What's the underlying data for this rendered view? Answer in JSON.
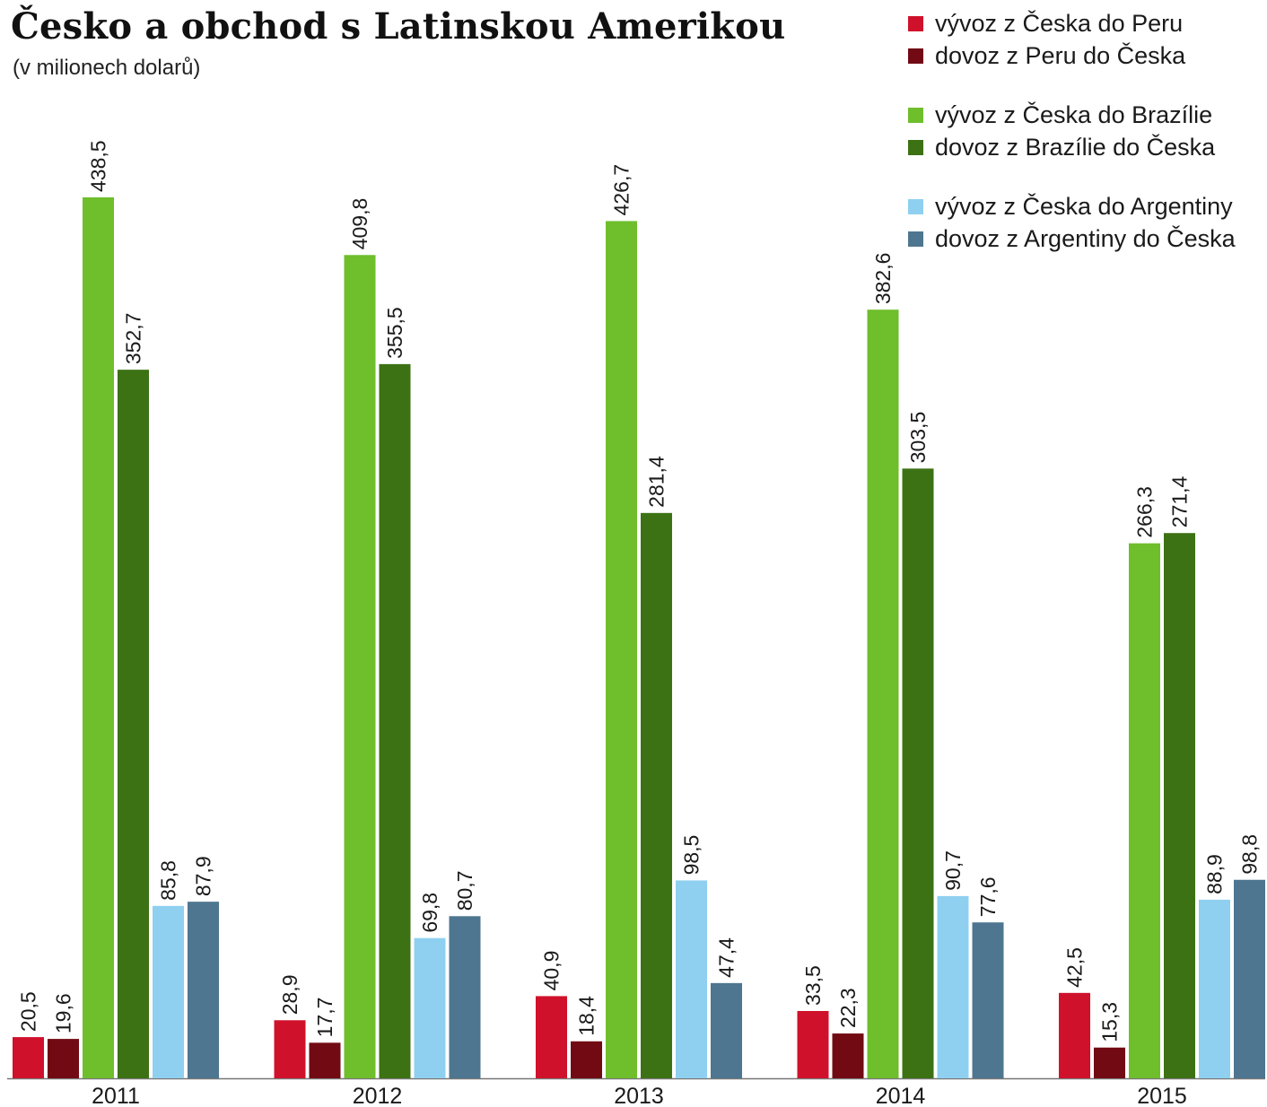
{
  "title": "Česko a obchod s Latinskou Amerikou",
  "subtitle": "(v milionech dolarů)",
  "chart_data": {
    "type": "bar",
    "title": "Česko a obchod s Latinskou Amerikou",
    "subtitle": "(v milionech dolarů)",
    "categories": [
      "2011",
      "2012",
      "2013",
      "2014",
      "2015"
    ],
    "series": [
      {
        "name": "vývoz z Česka do Peru",
        "color": "#d0112b",
        "values": [
          20.5,
          28.9,
          40.9,
          33.5,
          42.5
        ],
        "labels": [
          "20,5",
          "28,9",
          "40,9",
          "33,5",
          "42,5"
        ]
      },
      {
        "name": "dovoz z Peru do Česka",
        "color": "#720a14",
        "values": [
          19.6,
          17.7,
          18.4,
          22.3,
          15.3
        ],
        "labels": [
          "19,6",
          "17,7",
          "18,4",
          "22,3",
          "15,3"
        ]
      },
      {
        "name": "vývoz z Česka do Brazílie",
        "color": "#6fbe2c",
        "values": [
          438.5,
          409.8,
          426.7,
          382.6,
          266.3
        ],
        "labels": [
          "438,5",
          "409,8",
          "426,7",
          "382,6",
          "266,3"
        ]
      },
      {
        "name": "dovoz z Brazílie do Česka",
        "color": "#3c7214",
        "values": [
          352.7,
          355.5,
          281.4,
          303.5,
          271.4
        ],
        "labels": [
          "352,7",
          "355,5",
          "281,4",
          "303,5",
          "271,4"
        ]
      },
      {
        "name": "vývoz z Česka do Argentiny",
        "color": "#8fd0f0",
        "values": [
          85.8,
          69.8,
          98.5,
          90.7,
          88.9
        ],
        "labels": [
          "85,8",
          "69,8",
          "98,5",
          "90,7",
          "88,9"
        ]
      },
      {
        "name": "dovoz z Argentiny do Česka",
        "color": "#4e7690",
        "values": [
          87.9,
          80.7,
          47.4,
          77.6,
          98.8
        ],
        "labels": [
          "87,9",
          "80,7",
          "47,4",
          "77,6",
          "98,8"
        ]
      }
    ],
    "ylim": [
      0,
      438.5
    ],
    "grid": false,
    "legend_position": "top-right",
    "data_labels": "rotated-vertical"
  }
}
